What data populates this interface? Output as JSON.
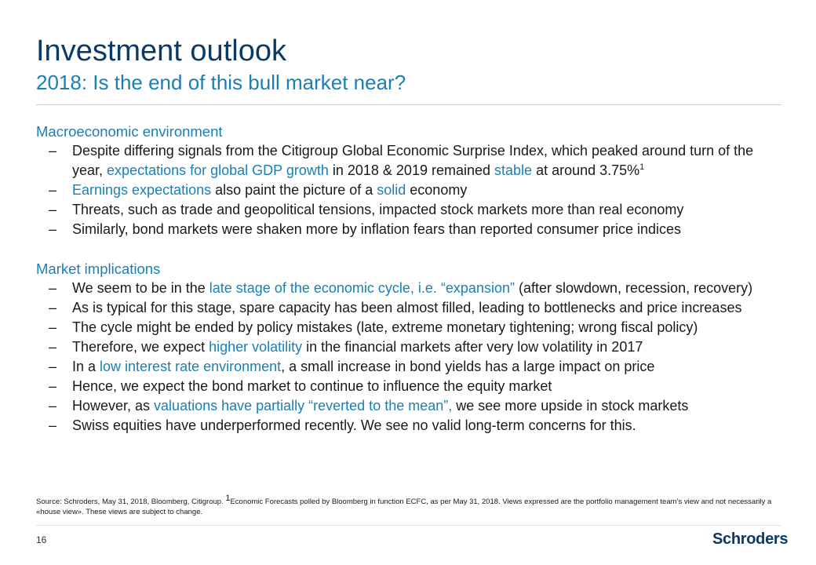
{
  "header": {
    "title": "Investment outlook",
    "subtitle": "2018: Is the end of this bull market near?"
  },
  "macro": {
    "heading": "Macroeconomic environment",
    "items": [
      {
        "parts": [
          {
            "t": "Despite differing signals from the Citigroup Global Economic Surprise Index, which peaked around turn of the year, "
          },
          {
            "t": "expectations for global GDP growth",
            "h": true
          },
          {
            "t": " in 2018 & 2019 remained "
          },
          {
            "t": "stable",
            "h": true
          },
          {
            "t": " at around 3.75%"
          },
          {
            "t": "1",
            "sup": true
          }
        ]
      },
      {
        "parts": [
          {
            "t": "Earnings expectations",
            "h": true
          },
          {
            "t": " also paint the picture of a "
          },
          {
            "t": "solid",
            "h": true
          },
          {
            "t": " economy"
          }
        ]
      },
      {
        "parts": [
          {
            "t": "Threats, such as trade and geopolitical tensions, impacted stock markets more than real economy"
          }
        ]
      },
      {
        "parts": [
          {
            "t": "Similarly, bond markets were shaken more by inflation fears than reported consumer price indices"
          }
        ]
      }
    ]
  },
  "market": {
    "heading": "Market implications",
    "items": [
      {
        "parts": [
          {
            "t": "We seem to be in the "
          },
          {
            "t": "late stage of the economic cycle, i.e. “expansion”",
            "h": true
          },
          {
            "t": " (after slowdown, recession, recovery)"
          }
        ]
      },
      {
        "parts": [
          {
            "t": "As is typical for this stage, spare capacity has been almost filled, leading to bottlenecks and price increases"
          }
        ]
      },
      {
        "parts": [
          {
            "t": "The cycle might be ended by policy mistakes (late, extreme monetary tightening; wrong fiscal policy)"
          }
        ]
      },
      {
        "parts": [
          {
            "t": "Therefore, we expect "
          },
          {
            "t": "higher volatility",
            "h": true
          },
          {
            "t": " in the financial markets after very low volatility in 2017"
          }
        ]
      },
      {
        "parts": [
          {
            "t": "In a "
          },
          {
            "t": "low interest rate environment",
            "h": true
          },
          {
            "t": ", a small increase in bond yields has a large impact on price"
          }
        ]
      },
      {
        "parts": [
          {
            "t": "Hence, we expect the bond market to continue to influence the equity market"
          }
        ]
      },
      {
        "parts": [
          {
            "t": "However, as "
          },
          {
            "t": "valuations have partially “reverted to the mean”,",
            "h": true
          },
          {
            "t": " we see more upside in stock markets"
          }
        ]
      },
      {
        "parts": [
          {
            "t": "Swiss equities have underperformed recently. We see no valid long-term concerns for this."
          }
        ]
      }
    ]
  },
  "footer": {
    "source_pre": "Source: Schroders, May 31, 2018, Bloomberg, Citigroup. ",
    "source_sup": "1",
    "source_post": "Economic Forecasts polled by Bloomberg in function ECFC, as per May 31, 2018.  Views expressed are the portfolio management team’s view and not necessarily a «house view». These views are subject to change.",
    "page_number": "16",
    "logo_text": "Schroders"
  },
  "bullet_glyph": "–",
  "colors": {
    "title": "#0b3a66",
    "accent": "#1a7fb5"
  }
}
